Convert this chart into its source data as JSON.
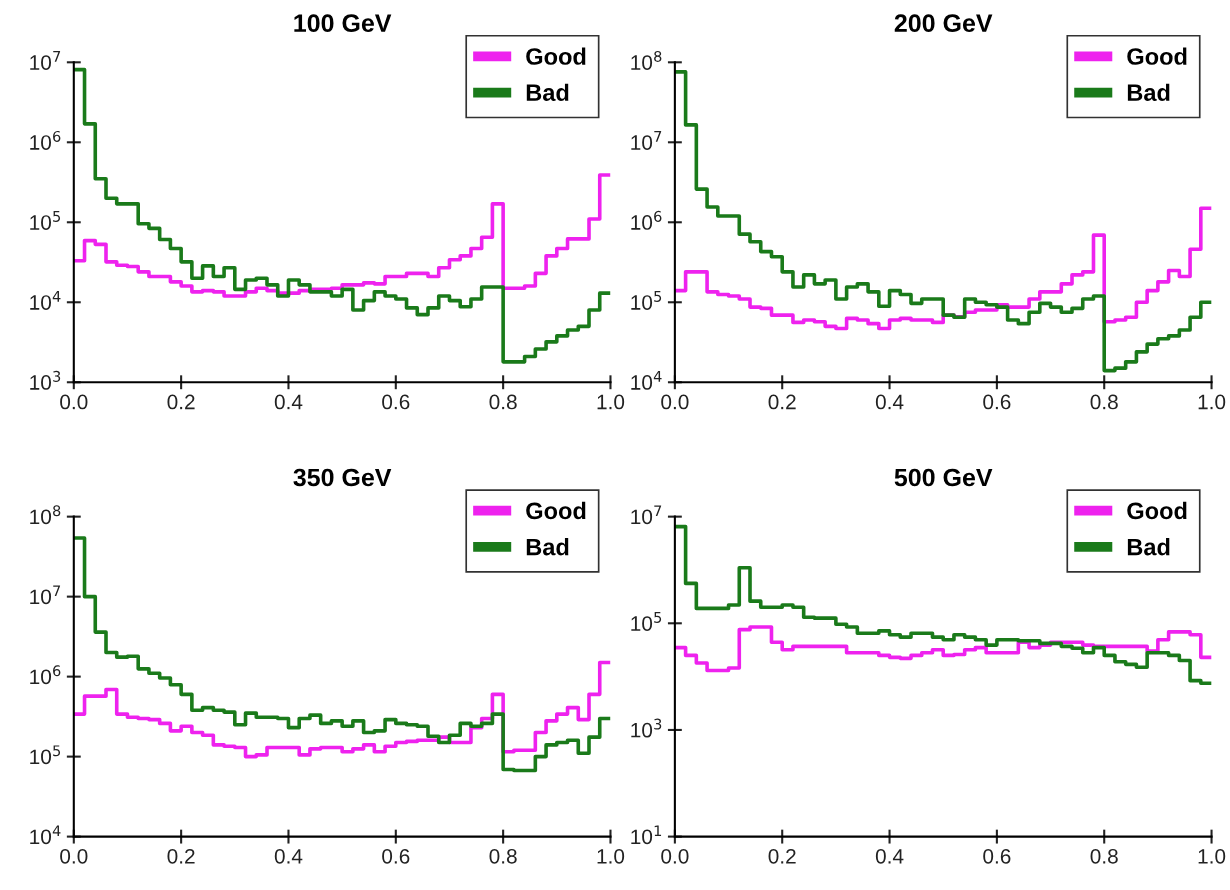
{
  "chart_data": [
    {
      "type": "histogram",
      "title": "100 GeV",
      "log": "y",
      "legend": "top right",
      "grid": false,
      "xlim": [
        0,
        1
      ],
      "ylim": [
        1000,
        10000000
      ],
      "bins": [
        0,
        0.02,
        0.04,
        0.06,
        0.08,
        0.1,
        0.12,
        0.14,
        0.16,
        0.18,
        0.2,
        0.22,
        0.24,
        0.26,
        0.28,
        0.3,
        0.32,
        0.34,
        0.36,
        0.38,
        0.4,
        0.42,
        0.44,
        0.46,
        0.48,
        0.5,
        0.52,
        0.54,
        0.56,
        0.58,
        0.6,
        0.62,
        0.64,
        0.66,
        0.68,
        0.7,
        0.72,
        0.74,
        0.76,
        0.78,
        0.8,
        0.82,
        0.84,
        0.86,
        0.88,
        0.9,
        0.92,
        0.94,
        0.96,
        0.98,
        1
      ],
      "xticks": [
        {
          "value": 0,
          "label": "0.0"
        },
        {
          "value": 0.2,
          "label": "0.2"
        },
        {
          "value": 0.4,
          "label": "0.4"
        },
        {
          "value": 0.6,
          "label": "0.6"
        },
        {
          "value": 0.8,
          "label": "0.8"
        },
        {
          "value": 1,
          "label": "1.0"
        }
      ],
      "yticks": [
        {
          "value": 1000,
          "label": "10$^{3}$"
        },
        {
          "value": 10000,
          "label": "10$^{4}$"
        },
        {
          "value": 100000,
          "label": "10$^{5}$"
        },
        {
          "value": 1000000,
          "label": "10$^{6}$"
        },
        {
          "value": 10000000,
          "label": "10$^{7}$"
        }
      ],
      "series": [
        {
          "name": "Good",
          "color": "#ee22ee",
          "values": [
            33000,
            59000,
            53000,
            32000,
            29000,
            28000,
            24000,
            21000,
            21000,
            18000,
            16000,
            13500,
            14000,
            13500,
            12000,
            12000,
            13500,
            15000,
            14000,
            13000,
            13000,
            14000,
            14500,
            14500,
            15000,
            16500,
            16500,
            17500,
            17000,
            21000,
            21000,
            23000,
            23000,
            21000,
            27000,
            34000,
            38000,
            47000,
            65000,
            170000,
            15000,
            15000,
            16000,
            23000,
            38000,
            47000,
            62000,
            62000,
            110000,
            390000
          ]
        },
        {
          "name": "Bad",
          "color": "#1a7a1a",
          "values": [
            8100000,
            1700000,
            350000,
            200000,
            170000,
            170000,
            96000,
            84000,
            61000,
            47000,
            32000,
            20000,
            28500,
            21000,
            27000,
            14500,
            19000,
            20000,
            16500,
            12000,
            19000,
            16500,
            13500,
            13500,
            12000,
            14500,
            8000,
            10500,
            13500,
            12000,
            11000,
            8500,
            7000,
            8500,
            12000,
            10500,
            8800,
            11000,
            15500,
            15500,
            1800,
            1800,
            2100,
            2600,
            3200,
            3800,
            4500,
            5000,
            8000,
            13000
          ]
        }
      ]
    },
    {
      "type": "histogram",
      "title": "200 GeV",
      "log": "y",
      "legend": "top right",
      "grid": false,
      "xlim": [
        0,
        1
      ],
      "ylim": [
        10000,
        100000000
      ],
      "bins": [
        0,
        0.02,
        0.04,
        0.06,
        0.08,
        0.1,
        0.12,
        0.14,
        0.16,
        0.18,
        0.2,
        0.22,
        0.24,
        0.26,
        0.28,
        0.3,
        0.32,
        0.34,
        0.36,
        0.38,
        0.4,
        0.42,
        0.44,
        0.46,
        0.48,
        0.5,
        0.52,
        0.54,
        0.56,
        0.58,
        0.6,
        0.62,
        0.64,
        0.66,
        0.68,
        0.7,
        0.72,
        0.74,
        0.76,
        0.78,
        0.8,
        0.82,
        0.84,
        0.86,
        0.88,
        0.9,
        0.92,
        0.94,
        0.96,
        0.98,
        1
      ],
      "xticks": [
        {
          "value": 0,
          "label": "0.0"
        },
        {
          "value": 0.2,
          "label": "0.2"
        },
        {
          "value": 0.4,
          "label": "0.4"
        },
        {
          "value": 0.6,
          "label": "0.6"
        },
        {
          "value": 0.8,
          "label": "0.8"
        },
        {
          "value": 1,
          "label": "1.0"
        }
      ],
      "yticks": [
        {
          "value": 10000,
          "label": "10$^{4}$"
        },
        {
          "value": 100000,
          "label": "10$^{5}$"
        },
        {
          "value": 1000000,
          "label": "10$^{6}$"
        },
        {
          "value": 10000000,
          "label": "10$^{7}$"
        },
        {
          "value": 100000000,
          "label": "10$^{8}$"
        }
      ],
      "series": [
        {
          "name": "Good",
          "color": "#ee22ee",
          "values": [
            140000,
            240000,
            240000,
            135000,
            125000,
            120000,
            110000,
            87000,
            84000,
            69000,
            69000,
            56000,
            60000,
            57000,
            50000,
            47000,
            63000,
            60000,
            54000,
            47000,
            60000,
            63000,
            60000,
            60000,
            56000,
            69000,
            66000,
            75000,
            80000,
            80000,
            93000,
            87000,
            87000,
            110000,
            135000,
            135000,
            170000,
            220000,
            240000,
            690000,
            57000,
            60000,
            65000,
            100000,
            140000,
            180000,
            250000,
            210000,
            460000,
            1500000
          ]
        },
        {
          "name": "Bad",
          "color": "#1a7a1a",
          "values": [
            76000000,
            16500000,
            2600000,
            1550000,
            1200000,
            1200000,
            710000,
            570000,
            430000,
            370000,
            240000,
            155000,
            220000,
            170000,
            190000,
            110000,
            155000,
            170000,
            135000,
            89000,
            140000,
            125000,
            97000,
            110000,
            110000,
            69000,
            65000,
            110000,
            100000,
            93000,
            87000,
            60000,
            54000,
            75000,
            97000,
            87000,
            75000,
            84000,
            110000,
            120000,
            14000,
            15000,
            18000,
            24000,
            30000,
            35000,
            38000,
            45000,
            65000,
            100000
          ]
        }
      ]
    },
    {
      "type": "histogram",
      "title": "350 GeV",
      "log": "y",
      "legend": "top right",
      "grid": false,
      "xlim": [
        0,
        1
      ],
      "ylim": [
        10000,
        100000000
      ],
      "bins": [
        0,
        0.02,
        0.04,
        0.06,
        0.08,
        0.1,
        0.12,
        0.14,
        0.16,
        0.18,
        0.2,
        0.22,
        0.24,
        0.26,
        0.28,
        0.3,
        0.32,
        0.34,
        0.36,
        0.38,
        0.4,
        0.42,
        0.44,
        0.46,
        0.48,
        0.5,
        0.52,
        0.54,
        0.56,
        0.58,
        0.6,
        0.62,
        0.64,
        0.66,
        0.68,
        0.7,
        0.72,
        0.74,
        0.76,
        0.78,
        0.8,
        0.82,
        0.84,
        0.86,
        0.88,
        0.9,
        0.92,
        0.94,
        0.96,
        0.98,
        1
      ],
      "xticks": [
        {
          "value": 0,
          "label": "0.0"
        },
        {
          "value": 0.2,
          "label": "0.2"
        },
        {
          "value": 0.4,
          "label": "0.4"
        },
        {
          "value": 0.6,
          "label": "0.6"
        },
        {
          "value": 0.8,
          "label": "0.8"
        },
        {
          "value": 1,
          "label": "1.0"
        }
      ],
      "yticks": [
        {
          "value": 10000,
          "label": "10$^{4}$"
        },
        {
          "value": 100000,
          "label": "10$^{5}$"
        },
        {
          "value": 1000000,
          "label": "10$^{6}$"
        },
        {
          "value": 10000000,
          "label": "10$^{7}$"
        },
        {
          "value": 100000000,
          "label": "10$^{8}$"
        }
      ],
      "series": [
        {
          "name": "Good",
          "color": "#ee22ee",
          "values": [
            340000,
            570000,
            570000,
            690000,
            340000,
            310000,
            300000,
            290000,
            260000,
            210000,
            240000,
            200000,
            185000,
            140000,
            135000,
            130000,
            100000,
            105000,
            130000,
            130000,
            130000,
            105000,
            125000,
            130000,
            130000,
            115000,
            125000,
            140000,
            115000,
            135000,
            150000,
            155000,
            160000,
            160000,
            175000,
            150000,
            150000,
            230000,
            300000,
            600000,
            115000,
            120000,
            120000,
            200000,
            280000,
            340000,
            410000,
            290000,
            600000,
            1500000
          ]
        },
        {
          "name": "Bad",
          "color": "#1a7a1a",
          "values": [
            54000000,
            10000000,
            3600000,
            2000000,
            1750000,
            1800000,
            1250000,
            1100000,
            960000,
            790000,
            600000,
            380000,
            410000,
            380000,
            360000,
            250000,
            350000,
            310000,
            310000,
            300000,
            230000,
            300000,
            330000,
            260000,
            280000,
            240000,
            280000,
            200000,
            210000,
            290000,
            260000,
            250000,
            240000,
            180000,
            150000,
            185000,
            260000,
            240000,
            260000,
            340000,
            69000,
            67000,
            67000,
            100000,
            140000,
            150000,
            160000,
            110000,
            175000,
            300000
          ]
        }
      ]
    },
    {
      "type": "histogram",
      "title": "500 GeV",
      "log": "y",
      "legend": "top right",
      "grid": false,
      "xlim": [
        0,
        1
      ],
      "ylim": [
        10,
        10000000
      ],
      "bins": [
        0,
        0.02,
        0.04,
        0.06,
        0.08,
        0.1,
        0.12,
        0.14,
        0.16,
        0.18,
        0.2,
        0.22,
        0.24,
        0.26,
        0.28,
        0.3,
        0.32,
        0.34,
        0.36,
        0.38,
        0.4,
        0.42,
        0.44,
        0.46,
        0.48,
        0.5,
        0.52,
        0.54,
        0.56,
        0.58,
        0.6,
        0.62,
        0.64,
        0.66,
        0.68,
        0.7,
        0.72,
        0.74,
        0.76,
        0.78,
        0.8,
        0.82,
        0.84,
        0.86,
        0.88,
        0.9,
        0.92,
        0.94,
        0.96,
        0.98,
        1
      ],
      "xticks": [
        {
          "value": 0,
          "label": "0.0"
        },
        {
          "value": 0.2,
          "label": "0.2"
        },
        {
          "value": 0.4,
          "label": "0.4"
        },
        {
          "value": 0.6,
          "label": "0.6"
        },
        {
          "value": 0.8,
          "label": "0.8"
        },
        {
          "value": 1,
          "label": "1.0"
        }
      ],
      "yticks": [
        {
          "value": 10,
          "label": "10$^{1}$"
        },
        {
          "value": 1000,
          "label": "10$^{3}$"
        },
        {
          "value": 100000,
          "label": "10$^{5}$"
        },
        {
          "value": 10000000,
          "label": "10$^{7}$"
        }
      ],
      "series": [
        {
          "name": "Good",
          "color": "#ee22ee",
          "values": [
            35000,
            25000,
            18000,
            13000,
            13000,
            14500,
            76000,
            85000,
            85000,
            44000,
            32000,
            37000,
            37000,
            37000,
            37000,
            37000,
            28000,
            28000,
            28000,
            25000,
            23000,
            22000,
            25000,
            28000,
            32000,
            25000,
            26000,
            32000,
            35000,
            28000,
            28000,
            28000,
            44000,
            35000,
            39000,
            44000,
            44000,
            44000,
            39000,
            37000,
            37000,
            37000,
            37000,
            37000,
            30000,
            49000,
            69000,
            69000,
            61000,
            23000
          ]
        },
        {
          "name": "Bad",
          "color": "#1a7a1a",
          "values": [
            6500000,
            560000,
            190000,
            190000,
            190000,
            220000,
            1100000,
            260000,
            200000,
            200000,
            220000,
            200000,
            130000,
            125000,
            125000,
            96000,
            85000,
            65000,
            65000,
            72000,
            61000,
            55000,
            65000,
            65000,
            55000,
            49000,
            61000,
            55000,
            49000,
            39000,
            49000,
            49000,
            47000,
            47000,
            42000,
            42000,
            37000,
            34000,
            28000,
            35000,
            25000,
            19000,
            17000,
            15000,
            28000,
            28000,
            25000,
            20000,
            8400,
            7500
          ]
        }
      ]
    }
  ]
}
